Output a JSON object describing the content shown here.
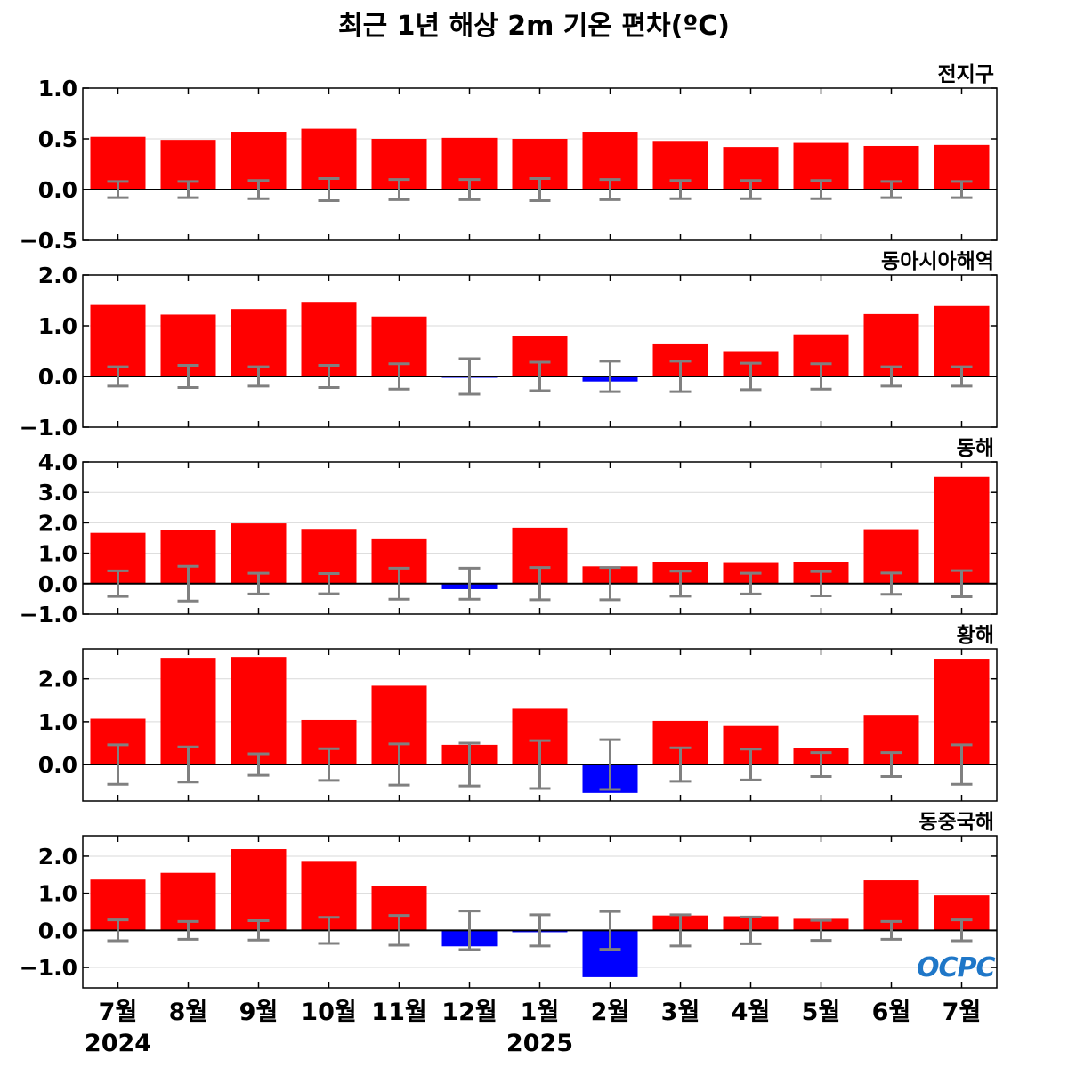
{
  "figure_title": "최근 1년 해상 2m 기온 편차(ºC)",
  "logo_text": "OCPC",
  "colors": {
    "positive": "#ff0000",
    "negative": "#0000ff",
    "error": "#808080",
    "grid": "#d9d9d9",
    "zero": "#000000"
  },
  "chart_data": {
    "type": "bar",
    "categories": [
      "7월",
      "8월",
      "9월",
      "10월",
      "11월",
      "12월",
      "1월",
      "2월",
      "3월",
      "4월",
      "5월",
      "6월",
      "7월"
    ],
    "years": [
      {
        "label": "2024",
        "at_index": 0
      },
      {
        "label": "2025",
        "at_index": 6
      }
    ],
    "panels": [
      {
        "title": "전지구",
        "ylim": [
          -0.5,
          1.0
        ],
        "yticks": [
          -0.5,
          0.0,
          0.5,
          1.0
        ],
        "ytick_labels": [
          "−0.5",
          "0.0",
          "0.5",
          "1.0"
        ],
        "values": [
          0.52,
          0.49,
          0.57,
          0.6,
          0.5,
          0.51,
          0.5,
          0.57,
          0.48,
          0.42,
          0.46,
          0.43,
          0.44
        ],
        "error": [
          0.08,
          0.08,
          0.09,
          0.11,
          0.1,
          0.1,
          0.11,
          0.1,
          0.09,
          0.09,
          0.09,
          0.08,
          0.08
        ]
      },
      {
        "title": "동아시아해역",
        "ylim": [
          -1.0,
          2.0
        ],
        "yticks": [
          -1.0,
          0.0,
          1.0,
          2.0
        ],
        "ytick_labels": [
          "−1.0",
          "0.0",
          "1.0",
          "2.0"
        ],
        "values": [
          1.41,
          1.22,
          1.33,
          1.47,
          1.18,
          -0.02,
          0.8,
          -0.1,
          0.65,
          0.5,
          0.83,
          1.23,
          1.39
        ],
        "error": [
          0.19,
          0.22,
          0.19,
          0.22,
          0.25,
          0.35,
          0.28,
          0.3,
          0.3,
          0.26,
          0.25,
          0.19,
          0.19
        ]
      },
      {
        "title": "동해",
        "ylim": [
          -1.0,
          4.0
        ],
        "yticks": [
          -1.0,
          0.0,
          1.0,
          2.0,
          3.0,
          4.0
        ],
        "ytick_labels": [
          "−1.0",
          "0.0",
          "1.0",
          "2.0",
          "3.0",
          "4.0"
        ],
        "values": [
          1.67,
          1.76,
          1.98,
          1.8,
          1.46,
          -0.18,
          1.84,
          0.57,
          0.72,
          0.68,
          0.71,
          1.79,
          3.51
        ],
        "error": [
          0.42,
          0.57,
          0.34,
          0.33,
          0.51,
          0.51,
          0.53,
          0.53,
          0.41,
          0.34,
          0.4,
          0.35,
          0.43
        ]
      },
      {
        "title": "황해",
        "ylim": [
          -0.85,
          2.7
        ],
        "yticks": [
          0.0,
          1.0,
          2.0
        ],
        "ytick_labels": [
          "0.0",
          "1.0",
          "2.0"
        ],
        "values": [
          1.07,
          2.49,
          2.51,
          1.04,
          1.84,
          0.46,
          1.3,
          -0.66,
          1.02,
          0.9,
          0.38,
          1.16,
          2.45
        ],
        "error": [
          0.46,
          0.41,
          0.25,
          0.37,
          0.48,
          0.5,
          0.56,
          0.58,
          0.39,
          0.36,
          0.28,
          0.28,
          0.46
        ]
      },
      {
        "title": "동중국해",
        "ylim": [
          -1.55,
          2.55
        ],
        "yticks": [
          -1.0,
          0.0,
          1.0,
          2.0
        ],
        "ytick_labels": [
          "−1.0",
          "0.0",
          "1.0",
          "2.0"
        ],
        "values": [
          1.37,
          1.55,
          2.19,
          1.87,
          1.19,
          -0.43,
          -0.05,
          -1.26,
          0.4,
          0.38,
          0.31,
          1.35,
          0.94
        ],
        "error": [
          0.28,
          0.24,
          0.26,
          0.35,
          0.4,
          0.52,
          0.42,
          0.51,
          0.42,
          0.36,
          0.27,
          0.24,
          0.28
        ]
      }
    ]
  }
}
